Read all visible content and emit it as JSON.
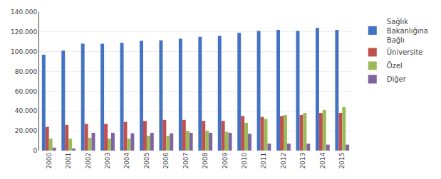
{
  "chart_data": {
    "type": "bar",
    "categories": [
      "2000",
      "2001",
      "2002",
      "2003",
      "2004",
      "2005",
      "2006",
      "2007",
      "2008",
      "2009",
      "2010",
      "2011",
      "2012",
      "2013",
      "2014",
      "2015"
    ],
    "series": [
      {
        "name": "Sağlık\nBakanlığına\nBağlı",
        "color": "#4472C4",
        "values": [
          97000,
          101000,
          108000,
          108000,
          109000,
          111000,
          111500,
          113000,
          115000,
          116000,
          119000,
          121000,
          122000,
          121000,
          124000,
          122000
        ]
      },
      {
        "name": "Üniversite",
        "color": "#C0504D",
        "values": [
          24000,
          26000,
          27000,
          27000,
          29000,
          30000,
          31000,
          31000,
          30000,
          30000,
          35000,
          34000,
          35000,
          36000,
          38000,
          38000
        ]
      },
      {
        "name": "Özel",
        "color": "#9BBB59",
        "values": [
          12000,
          12000,
          13000,
          12000,
          12000,
          15000,
          15000,
          20000,
          20000,
          19000,
          28000,
          32000,
          36000,
          38000,
          41000,
          44000
        ]
      },
      {
        "name": "Diğer",
        "color": "#8064A2",
        "values": [
          3000,
          2000,
          18000,
          18000,
          17500,
          18000,
          17500,
          18000,
          18000,
          18000,
          17000,
          7000,
          7000,
          7000,
          6000,
          6000
        ]
      }
    ],
    "ylim": [
      0,
      140000
    ],
    "yticks": [
      0,
      {
        "value": 20000,
        "label": "20.000"
      },
      {
        "value": 40000,
        "label": "40.000"
      },
      {
        "value": 60000,
        "label": "60.000"
      },
      {
        "value": 80000,
        "label": "80.000"
      },
      {
        "value": 100000,
        "label": "100.000"
      },
      {
        "value": 120000,
        "label": "120.000"
      },
      {
        "value": 140000,
        "label": "140.000"
      }
    ],
    "grid": true,
    "legend": "right"
  }
}
